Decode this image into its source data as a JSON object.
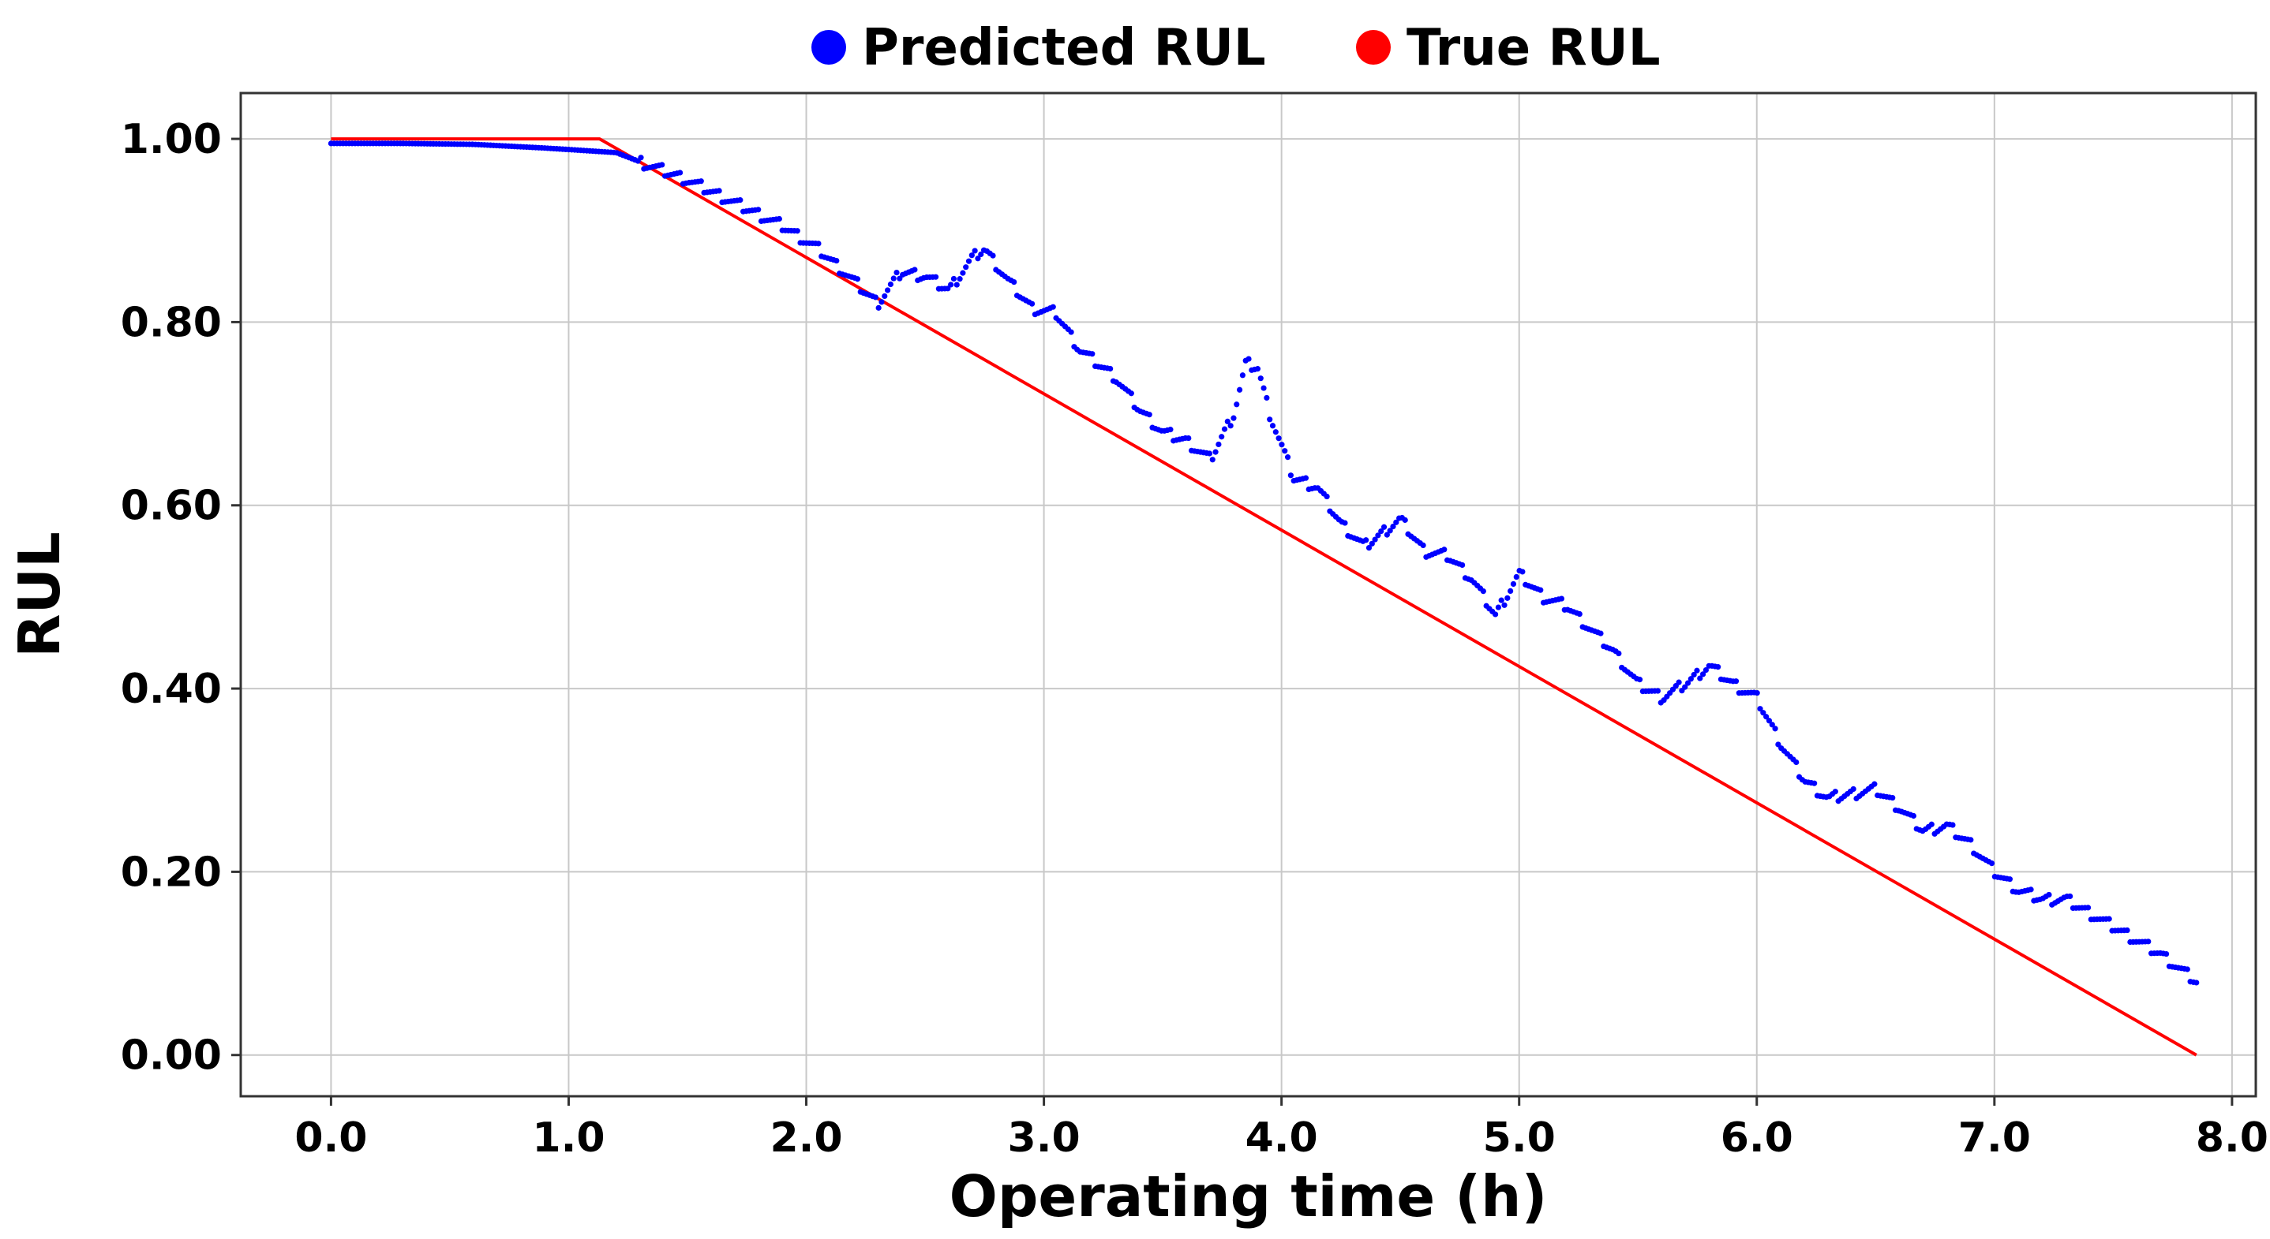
{
  "chart_data": {
    "type": "scatter",
    "xlabel": "Operating time (h)",
    "ylabel": "RUL",
    "xlim": [
      -0.38,
      8.1
    ],
    "ylim": [
      -0.045,
      1.05
    ],
    "xticks": [
      0,
      1,
      2,
      3,
      4,
      5,
      6,
      7,
      8
    ],
    "xtick_labels": [
      "0.0",
      "1.0",
      "2.0",
      "3.0",
      "4.0",
      "5.0",
      "6.0",
      "7.0",
      "8.0"
    ],
    "yticks": [
      0,
      0.2,
      0.4,
      0.6,
      0.8,
      1.0
    ],
    "ytick_labels": [
      "0.00",
      "0.20",
      "0.40",
      "0.60",
      "0.80",
      "1.00"
    ],
    "grid": true,
    "legend_position": "top-center",
    "series": [
      {
        "name": "Predicted RUL",
        "kind": "points",
        "color": "#0000ff",
        "x": [
          0.0,
          0.3,
          0.6,
          0.9,
          1.2,
          1.5,
          1.7,
          1.9,
          2.05,
          2.2,
          2.3,
          2.4,
          2.5,
          2.6,
          2.7,
          2.75,
          2.85,
          2.95,
          3.05,
          3.15,
          3.3,
          3.4,
          3.5,
          3.6,
          3.7,
          3.8,
          3.85,
          3.9,
          3.95,
          4.05,
          4.15,
          4.25,
          4.35,
          4.45,
          4.5,
          4.6,
          4.7,
          4.8,
          4.9,
          5.0,
          5.1,
          5.2,
          5.3,
          5.4,
          5.5,
          5.6,
          5.7,
          5.8,
          5.9,
          6.0,
          6.1,
          6.2,
          6.3,
          6.4,
          6.5,
          6.6,
          6.7,
          6.8,
          6.9,
          7.0,
          7.1,
          7.2,
          7.3,
          7.4,
          7.5,
          7.6,
          7.7,
          7.85
        ],
        "y": [
          0.995,
          0.995,
          0.994,
          0.99,
          0.985,
          0.955,
          0.93,
          0.905,
          0.88,
          0.845,
          0.82,
          0.855,
          0.85,
          0.835,
          0.87,
          0.88,
          0.845,
          0.815,
          0.81,
          0.77,
          0.74,
          0.705,
          0.68,
          0.67,
          0.65,
          0.7,
          0.755,
          0.75,
          0.7,
          0.63,
          0.62,
          0.58,
          0.555,
          0.575,
          0.585,
          0.55,
          0.545,
          0.52,
          0.48,
          0.525,
          0.5,
          0.49,
          0.465,
          0.44,
          0.405,
          0.39,
          0.405,
          0.425,
          0.405,
          0.39,
          0.34,
          0.3,
          0.28,
          0.285,
          0.29,
          0.27,
          0.245,
          0.25,
          0.23,
          0.2,
          0.18,
          0.17,
          0.17,
          0.155,
          0.14,
          0.125,
          0.11,
          0.08
        ]
      },
      {
        "name": "True RUL",
        "kind": "line",
        "color": "#ff0000",
        "x": [
          0.0,
          1.13,
          7.85
        ],
        "y": [
          1.0,
          1.0,
          0.0
        ]
      }
    ]
  }
}
